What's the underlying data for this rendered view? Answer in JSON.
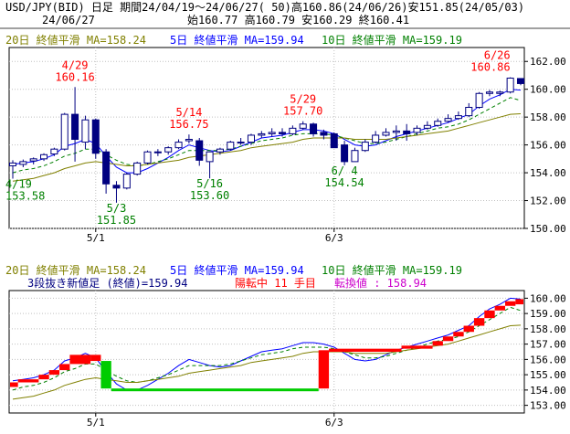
{
  "header": {
    "line1": "USD/JPY(BID) 日足 期間24/04/19～24/06/27( 50)高160.86(24/06/26)安151.85(24/05/03)",
    "line2_date": "24/06/27",
    "line2_ohlc": "始160.77 高160.79 安160.29 終160.41"
  },
  "legend_top": {
    "ma20": "20日 終値平滑 MA=158.24",
    "ma5": "5日 終値平滑 MA=159.94",
    "ma10": "10日 終値平滑 MA=159.19"
  },
  "legend_bottom": {
    "ma20": "20日 終値平滑 MA=158.24",
    "ma5": "5日 終値平滑 MA=159.94",
    "ma10": "10日 終値平滑 MA=159.19",
    "info1": "3段抜き新値足 (終値)=159.94",
    "info2": "陽転中 11 手目",
    "info3": "転換値 : 158.94"
  },
  "colors": {
    "up": "#ffffff",
    "down": "#000080",
    "ma5": "#0000ff",
    "ma10": "#008000",
    "ma20": "#808000",
    "brick_up": "#ff0000",
    "brick_down": "#00cc00",
    "grid": "#c0c0c0",
    "annotation_high": "#ff0000",
    "annotation_low": "#008000"
  },
  "chart_data": [
    {
      "type": "candlestick",
      "title": "USD/JPY(BID) 日足",
      "x_ticks": [
        "5/1",
        "6/3"
      ],
      "ylim": [
        150,
        163
      ],
      "y_ticks": [
        150,
        152,
        154,
        156,
        158,
        160,
        162
      ],
      "y_tick_labels": [
        "150.00",
        "152.00",
        "154.00",
        "156.00",
        "158.00",
        "160.00",
        "162.00"
      ],
      "dates": [
        "4/19",
        "4/22",
        "4/23",
        "4/24",
        "4/25",
        "4/26",
        "4/29",
        "4/30",
        "5/1",
        "5/2",
        "5/3",
        "5/6",
        "5/7",
        "5/8",
        "5/9",
        "5/10",
        "5/13",
        "5/14",
        "5/15",
        "5/16",
        "5/17",
        "5/20",
        "5/21",
        "5/22",
        "5/23",
        "5/24",
        "5/27",
        "5/28",
        "5/29",
        "5/30",
        "5/31",
        "6/3",
        "6/4",
        "6/5",
        "6/6",
        "6/7",
        "6/10",
        "6/11",
        "6/12",
        "6/13",
        "6/14",
        "6/17",
        "6/18",
        "6/19",
        "6/20",
        "6/21",
        "6/24",
        "6/25",
        "6/26",
        "6/27"
      ],
      "open": [
        154.5,
        154.6,
        154.85,
        155.0,
        155.35,
        155.7,
        158.2,
        156.2,
        157.8,
        155.5,
        153.1,
        152.9,
        153.9,
        154.7,
        155.5,
        155.5,
        155.8,
        156.3,
        156.3,
        154.8,
        155.5,
        155.7,
        156.2,
        156.2,
        156.7,
        156.8,
        156.9,
        156.8,
        157.2,
        157.5,
        156.9,
        156.8,
        156.0,
        154.8,
        155.6,
        156.2,
        156.7,
        156.9,
        157.0,
        156.9,
        157.2,
        157.4,
        157.7,
        157.9,
        158.1,
        158.7,
        159.7,
        159.7,
        159.8,
        160.77
      ],
      "high": [
        154.9,
        154.95,
        155.1,
        155.4,
        155.8,
        158.3,
        160.16,
        158.1,
        157.9,
        155.7,
        153.4,
        154.0,
        154.8,
        155.6,
        155.7,
        155.9,
        156.4,
        156.75,
        156.5,
        155.5,
        155.8,
        156.3,
        156.5,
        156.8,
        157.0,
        157.2,
        157.2,
        157.4,
        157.7,
        157.6,
        157.1,
        156.9,
        156.3,
        155.8,
        156.4,
        157.0,
        157.2,
        157.4,
        157.5,
        157.4,
        157.7,
        157.9,
        158.2,
        158.4,
        159.0,
        159.8,
        159.95,
        159.9,
        160.86,
        160.79
      ],
      "low": [
        153.58,
        154.4,
        154.6,
        154.85,
        155.2,
        155.6,
        154.8,
        155.7,
        155.0,
        152.5,
        151.85,
        152.8,
        153.8,
        154.6,
        155.2,
        155.3,
        155.7,
        156.1,
        154.5,
        153.6,
        155.3,
        155.6,
        156.0,
        156.0,
        156.5,
        156.6,
        156.6,
        156.7,
        157.1,
        156.6,
        156.4,
        155.8,
        154.54,
        154.8,
        155.5,
        156.1,
        156.6,
        156.3,
        156.3,
        156.7,
        157.1,
        157.3,
        157.6,
        157.8,
        158.0,
        158.6,
        159.5,
        159.5,
        159.7,
        160.29
      ],
      "close": [
        154.7,
        154.8,
        155.0,
        155.3,
        155.7,
        158.2,
        156.4,
        157.8,
        155.4,
        153.2,
        152.9,
        153.9,
        154.7,
        155.5,
        155.5,
        155.8,
        156.2,
        156.4,
        154.9,
        155.5,
        155.7,
        156.2,
        156.2,
        156.7,
        156.8,
        156.9,
        156.8,
        157.2,
        157.5,
        156.8,
        156.7,
        155.8,
        154.8,
        155.6,
        156.2,
        156.7,
        156.9,
        157.0,
        156.8,
        157.2,
        157.4,
        157.7,
        157.9,
        158.1,
        158.7,
        159.7,
        159.8,
        159.8,
        160.8,
        160.41
      ],
      "ma_lines": [
        {
          "name": "5日 終値平滑",
          "values": [
            154.6,
            154.7,
            154.8,
            155.0,
            155.3,
            155.9,
            156.1,
            156.4,
            156.1,
            155.2,
            154.4,
            154.0,
            154.0,
            154.3,
            154.7,
            155.1,
            155.6,
            156.0,
            155.8,
            155.6,
            155.5,
            155.6,
            155.9,
            156.2,
            156.5,
            156.6,
            156.7,
            156.9,
            157.1,
            157.1,
            157.0,
            156.8,
            156.4,
            156.0,
            155.9,
            156.0,
            156.3,
            156.6,
            156.8,
            157.0,
            157.2,
            157.4,
            157.6,
            157.9,
            158.2,
            158.8,
            159.3,
            159.6,
            160.0,
            159.94
          ]
        },
        {
          "name": "10日 終値平滑",
          "values": [
            154.0,
            154.2,
            154.3,
            154.5,
            154.8,
            155.2,
            155.4,
            155.7,
            155.7,
            155.3,
            154.9,
            154.6,
            154.5,
            154.6,
            154.8,
            155.0,
            155.3,
            155.6,
            155.6,
            155.6,
            155.6,
            155.7,
            155.9,
            156.1,
            156.3,
            156.4,
            156.5,
            156.7,
            156.8,
            156.8,
            156.8,
            156.7,
            156.5,
            156.3,
            156.1,
            156.1,
            156.2,
            156.4,
            156.6,
            156.8,
            157.0,
            157.2,
            157.3,
            157.5,
            157.8,
            158.2,
            158.6,
            159.0,
            159.4,
            159.19
          ]
        },
        {
          "name": "20日 終値平滑",
          "values": [
            153.4,
            153.5,
            153.6,
            153.8,
            154.0,
            154.3,
            154.5,
            154.7,
            154.8,
            154.7,
            154.6,
            154.5,
            154.5,
            154.6,
            154.7,
            154.8,
            154.9,
            155.1,
            155.2,
            155.3,
            155.4,
            155.5,
            155.6,
            155.8,
            155.9,
            156.0,
            156.1,
            156.2,
            156.4,
            156.5,
            156.5,
            156.5,
            156.5,
            156.4,
            156.4,
            156.4,
            156.4,
            156.5,
            156.6,
            156.7,
            156.8,
            156.9,
            157.0,
            157.2,
            157.4,
            157.6,
            157.8,
            158.0,
            158.2,
            158.24
          ]
        }
      ],
      "annotations": [
        {
          "date": "4/19",
          "label": "4/19",
          "value": "153.58",
          "pos": "low"
        },
        {
          "date": "4/29",
          "label": "4/29",
          "value": "160.16",
          "pos": "high"
        },
        {
          "date": "5/3",
          "label": "5/3",
          "value": "151.85",
          "pos": "low"
        },
        {
          "date": "5/14",
          "label": "5/14",
          "value": "156.75",
          "pos": "high"
        },
        {
          "date": "5/16",
          "label": "5/16",
          "value": "153.60",
          "pos": "low"
        },
        {
          "date": "5/29",
          "label": "5/29",
          "value": "157.70",
          "pos": "high"
        },
        {
          "date": "6/4",
          "label": "6/ 4",
          "value": "154.54",
          "pos": "low"
        },
        {
          "date": "6/26",
          "label": "6/26",
          "value": "160.86",
          "pos": "high"
        }
      ]
    },
    {
      "type": "bar",
      "title": "3段抜き新値足 (終値)",
      "x_ticks": [
        "5/1",
        "6/3"
      ],
      "ylim": [
        152.5,
        160.5
      ],
      "y_ticks": [
        153,
        154,
        155,
        156,
        157,
        158,
        159,
        160
      ],
      "y_tick_labels": [
        "153.00",
        "154.00",
        "155.00",
        "156.00",
        "157.00",
        "158.00",
        "159.00",
        "160.00"
      ],
      "bricks": [
        {
          "start": "4/19",
          "end": "4/22",
          "low": 154.2,
          "high": 154.5,
          "dir": "up"
        },
        {
          "start": "4/22",
          "end": "4/24",
          "low": 154.5,
          "high": 154.7,
          "dir": "up"
        },
        {
          "start": "4/24",
          "end": "4/25",
          "low": 154.7,
          "high": 155.0,
          "dir": "up"
        },
        {
          "start": "4/25",
          "end": "4/26",
          "low": 155.0,
          "high": 155.3,
          "dir": "up"
        },
        {
          "start": "4/26",
          "end": "4/29",
          "low": 155.3,
          "high": 155.7,
          "dir": "up"
        },
        {
          "start": "4/29",
          "end": "5/1",
          "low": 155.7,
          "high": 156.3,
          "dir": "up"
        },
        {
          "start": "5/1",
          "end": "5/2",
          "low": 155.9,
          "high": 156.3,
          "dir": "up"
        },
        {
          "start": "5/2",
          "end": "5/3",
          "low": 154.1,
          "high": 155.9,
          "dir": "down"
        },
        {
          "start": "5/3",
          "end": "5/31",
          "low": 154.0,
          "high": 154.1,
          "dir": "down"
        },
        {
          "start": "5/31",
          "end": "6/3",
          "low": 154.1,
          "high": 156.6,
          "dir": "up"
        },
        {
          "start": "6/3",
          "end": "6/12",
          "low": 156.5,
          "high": 156.7,
          "dir": "up"
        },
        {
          "start": "6/12",
          "end": "6/17",
          "low": 156.7,
          "high": 156.9,
          "dir": "up"
        },
        {
          "start": "6/17",
          "end": "6/18",
          "low": 156.9,
          "high": 157.2,
          "dir": "up"
        },
        {
          "start": "6/18",
          "end": "6/19",
          "low": 157.2,
          "high": 157.5,
          "dir": "up"
        },
        {
          "start": "6/19",
          "end": "6/20",
          "low": 157.5,
          "high": 157.8,
          "dir": "up"
        },
        {
          "start": "6/20",
          "end": "6/21",
          "low": 157.8,
          "high": 158.2,
          "dir": "up"
        },
        {
          "start": "6/21",
          "end": "6/24",
          "low": 158.2,
          "high": 158.7,
          "dir": "up"
        },
        {
          "start": "6/24",
          "end": "6/25",
          "low": 158.7,
          "high": 159.2,
          "dir": "up"
        },
        {
          "start": "6/25",
          "end": "6/26",
          "low": 159.2,
          "high": 159.5,
          "dir": "up"
        },
        {
          "start": "6/26",
          "end": "6/27",
          "low": 159.5,
          "high": 159.8,
          "dir": "up"
        },
        {
          "start": "6/27",
          "end": "6/28",
          "low": 159.6,
          "high": 159.94,
          "dir": "up"
        }
      ]
    }
  ]
}
